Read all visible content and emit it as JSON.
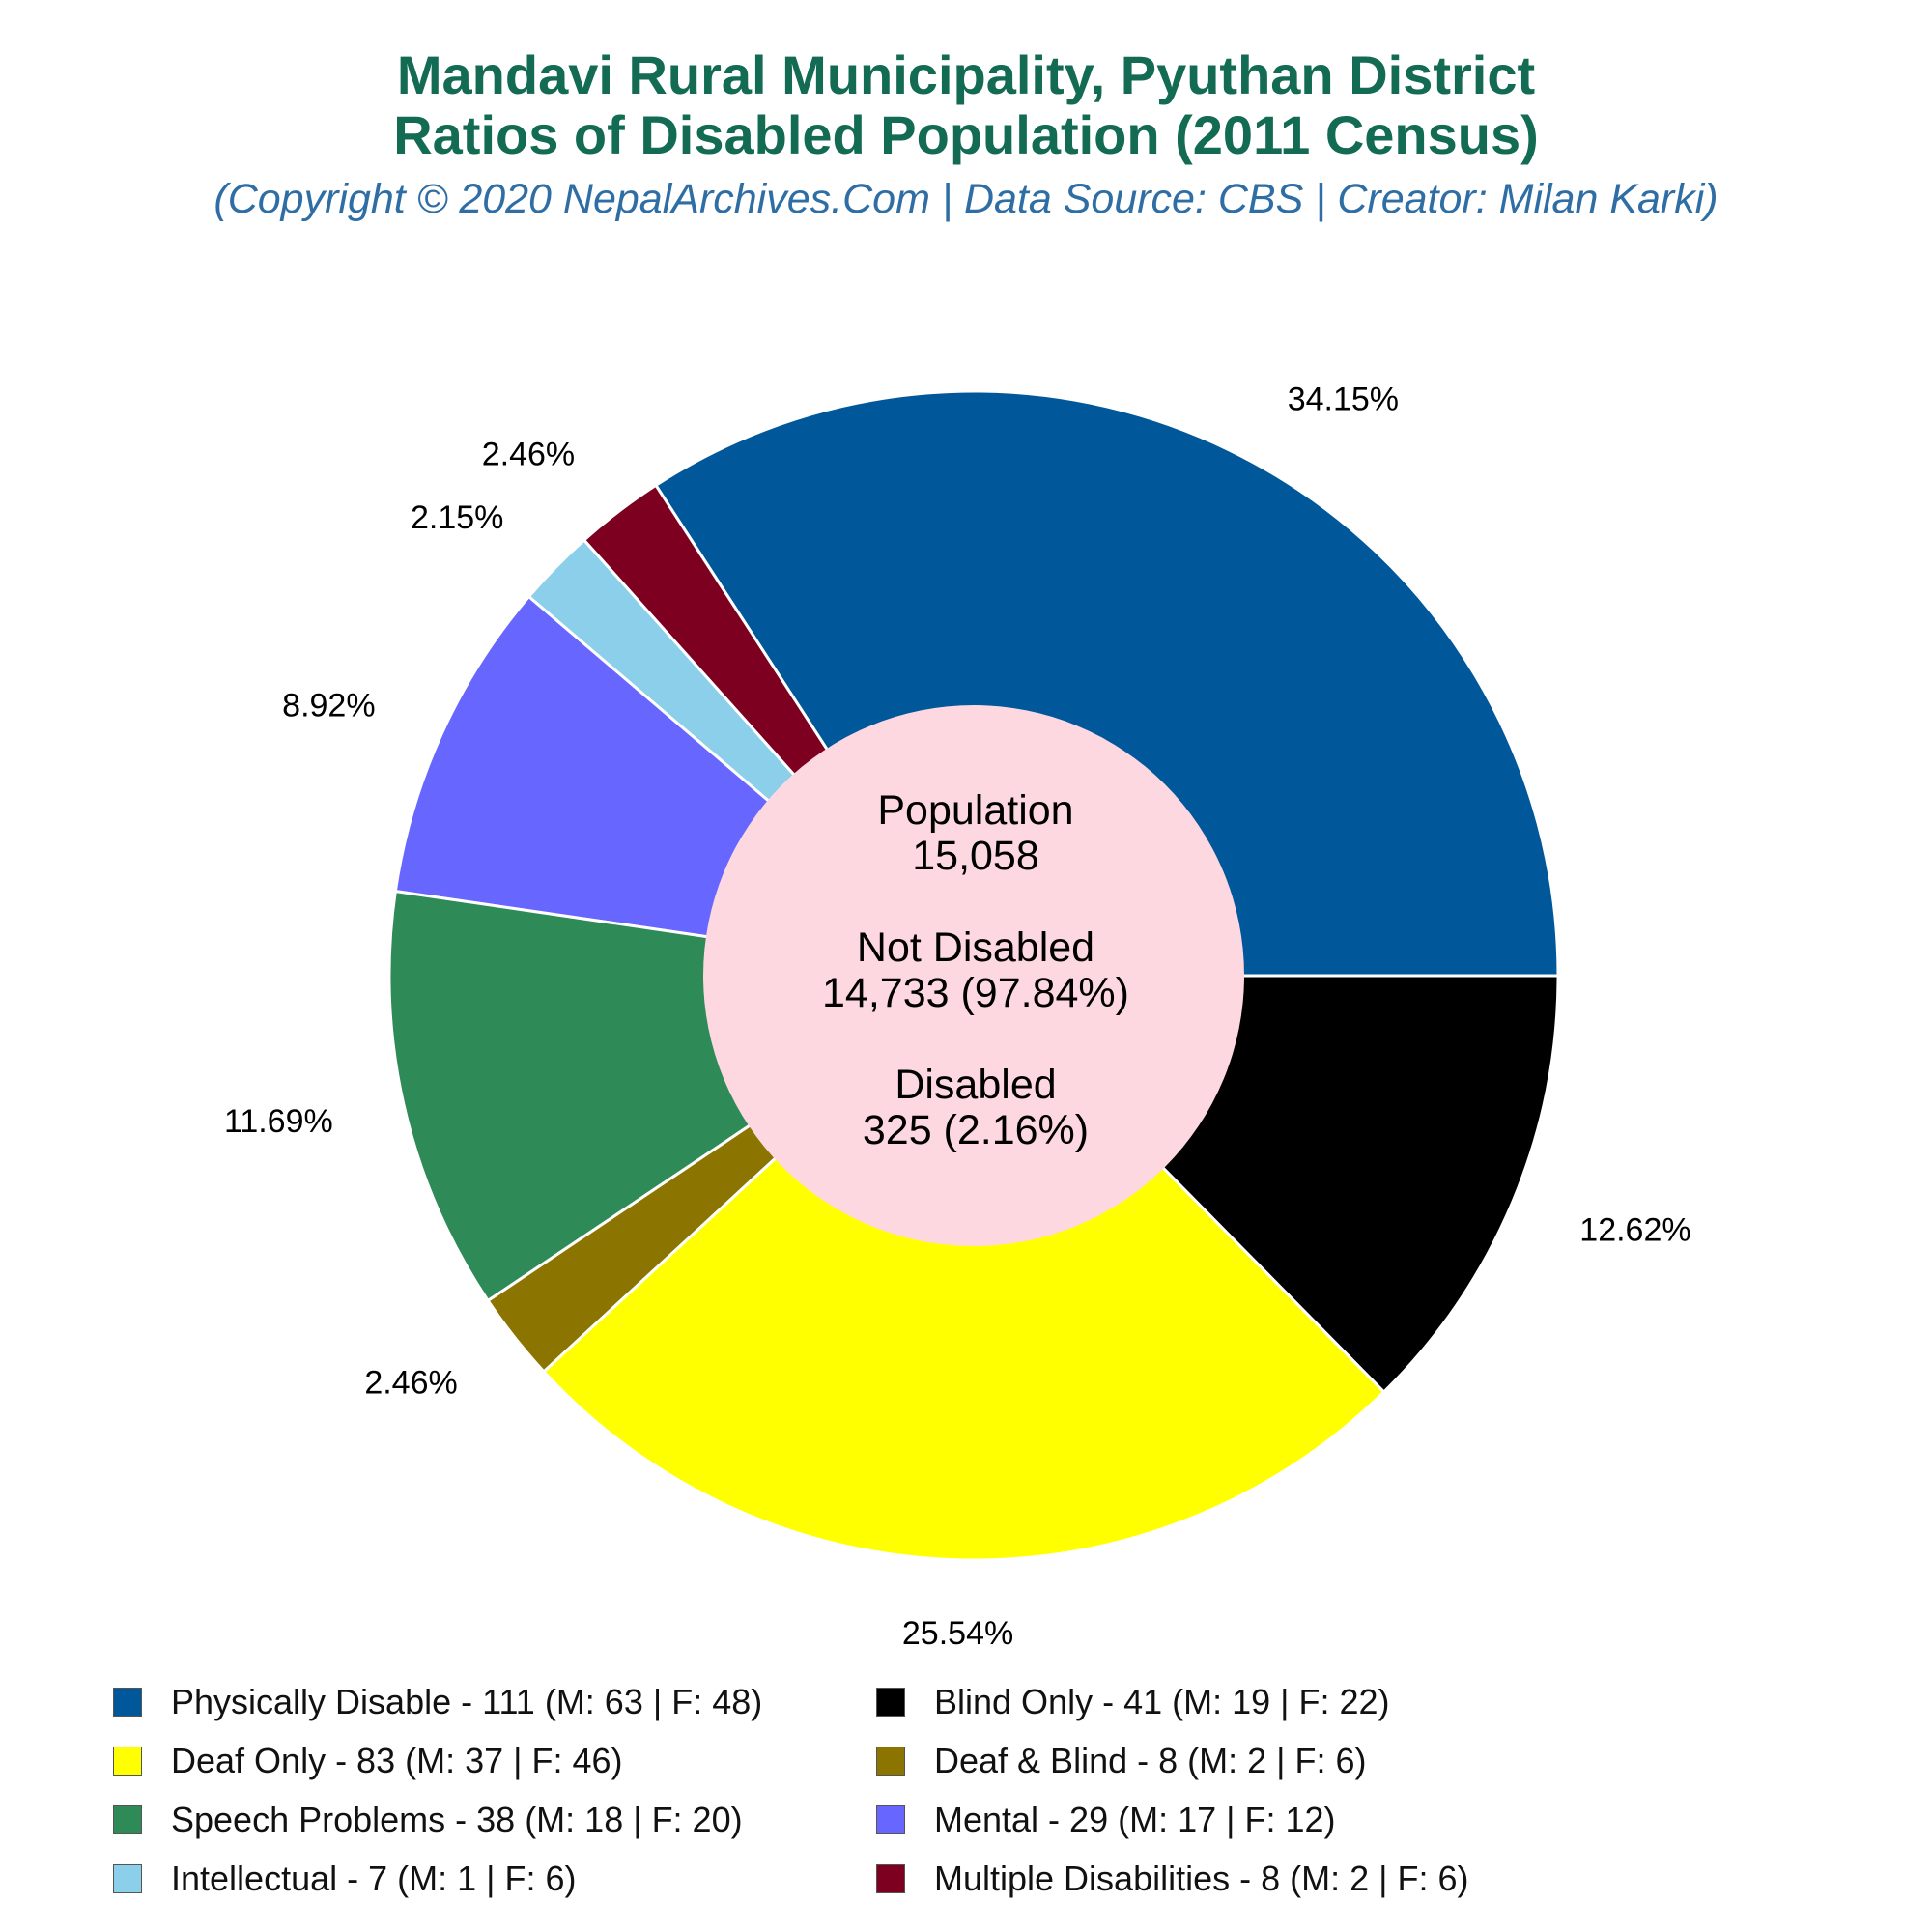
{
  "title": {
    "line1": "Mandavi Rural Municipality, Pyuthan District",
    "line2": "Ratios of Disabled Population (2011 Census)",
    "subtitle": "(Copyright © 2020 NepalArchives.Com | Data Source: CBS | Creator: Milan Karki)"
  },
  "center": {
    "population_label": "Population",
    "population_value": "15,058",
    "not_disabled_label": "Not Disabled",
    "not_disabled_value": "14,733 (97.84%)",
    "disabled_label": "Disabled",
    "disabled_value": "325 (2.16%)"
  },
  "chart_data": {
    "type": "pie",
    "slices": [
      {
        "name": "Physically Disable",
        "value": 111,
        "percent_label": "34.15%",
        "color": "#00589b",
        "legend": "Physically Disable - 111 (M: 63 | F: 48)"
      },
      {
        "name": "Multiple Disabilities",
        "value": 8,
        "percent_label": "2.46%",
        "color": "#7e0021",
        "legend": "Multiple Disabilities - 8 (M: 2 | F: 6)"
      },
      {
        "name": "Intellectual",
        "value": 7,
        "percent_label": "2.15%",
        "color": "#8ccfea",
        "legend": "Intellectual - 7 (M: 1 | F: 6)"
      },
      {
        "name": "Mental",
        "value": 29,
        "percent_label": "8.92%",
        "color": "#6767ff",
        "legend": "Mental - 29 (M: 17 | F: 12)"
      },
      {
        "name": "Speech Problems",
        "value": 38,
        "percent_label": "11.69%",
        "color": "#2e8b57",
        "legend": "Speech Problems - 38 (M: 18 | F: 20)"
      },
      {
        "name": "Deaf & Blind",
        "value": 8,
        "percent_label": "2.46%",
        "color": "#8b7500",
        "legend": "Deaf & Blind - 8 (M: 2 | F: 6)"
      },
      {
        "name": "Deaf Only",
        "value": 83,
        "percent_label": "25.54%",
        "color": "#ffff00",
        "legend": "Deaf Only - 83 (M: 37 | F: 46)"
      },
      {
        "name": "Blind Only",
        "value": 41,
        "percent_label": "12.62%",
        "color": "#000000",
        "legend": "Blind Only - 41 (M: 19 | F: 22)"
      }
    ],
    "legend_order": [
      "Physically Disable",
      "Blind Only",
      "Deaf Only",
      "Deaf & Blind",
      "Speech Problems",
      "Mental",
      "Intellectual",
      "Multiple Disabilities"
    ],
    "legend_placement": "bottom",
    "center_color": "#fdd8e0"
  }
}
